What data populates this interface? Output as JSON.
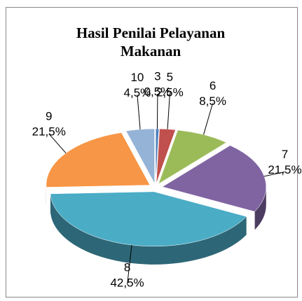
{
  "chart_data": {
    "type": "pie",
    "title": "Hasil Penilai Pelayanan Makanan",
    "categories": [
      "3",
      "5",
      "6",
      "7",
      "8",
      "9",
      "10"
    ],
    "values": [
      0.5,
      2.5,
      8.5,
      21.5,
      42.5,
      21.5,
      4.5
    ],
    "value_labels": [
      "0,5%",
      "2,5%",
      "8,5%",
      "21,5%",
      "42,5%",
      "21,5%",
      "4,5%"
    ],
    "colors": [
      "#4f81bd",
      "#c0504d",
      "#9bbb59",
      "#8064a2",
      "#4bacc6",
      "#f79646",
      "#95b3d7"
    ]
  }
}
